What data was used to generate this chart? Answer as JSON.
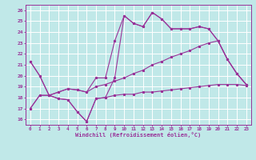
{
  "title": "Windchill (Refroidissement éolien,°C)",
  "bg_color": "#c0e8e8",
  "line_color": "#993399",
  "grid_color": "#ffffff",
  "xlim": [
    -0.5,
    23.5
  ],
  "ylim": [
    15.5,
    26.5
  ],
  "yticks": [
    16,
    17,
    18,
    19,
    20,
    21,
    22,
    23,
    24,
    25,
    26
  ],
  "xticks": [
    0,
    1,
    2,
    3,
    4,
    5,
    6,
    7,
    8,
    9,
    10,
    11,
    12,
    13,
    14,
    15,
    16,
    17,
    18,
    19,
    20,
    21,
    22,
    23
  ],
  "line1": [
    21.3,
    20.0,
    18.2,
    17.9,
    17.8,
    16.7,
    15.8,
    17.9,
    18.0,
    19.8,
    25.5,
    24.8,
    24.5,
    25.8,
    25.2,
    24.3,
    24.3,
    24.3,
    24.5,
    24.3,
    23.2,
    21.5,
    20.2,
    19.2
  ],
  "line2": [
    21.3,
    20.0,
    18.2,
    18.5,
    18.8,
    18.7,
    18.5,
    19.8,
    19.8,
    23.2,
    25.5,
    24.8,
    24.5,
    25.8,
    25.2,
    24.3,
    24.3,
    24.3,
    24.5,
    24.3,
    23.2,
    21.5,
    20.2,
    19.2
  ],
  "line3": [
    17.0,
    18.2,
    18.2,
    17.9,
    17.8,
    16.7,
    15.8,
    17.9,
    18.0,
    18.2,
    18.3,
    18.3,
    18.5,
    18.5,
    18.6,
    18.7,
    18.8,
    18.9,
    19.0,
    19.1,
    19.2,
    19.2,
    19.2,
    19.1
  ],
  "line4": [
    17.0,
    18.2,
    18.2,
    18.5,
    18.8,
    18.7,
    18.5,
    19.0,
    19.2,
    19.5,
    19.8,
    20.2,
    20.5,
    21.0,
    21.3,
    21.7,
    22.0,
    22.3,
    22.7,
    23.0,
    23.2,
    21.5,
    20.2,
    19.2
  ]
}
